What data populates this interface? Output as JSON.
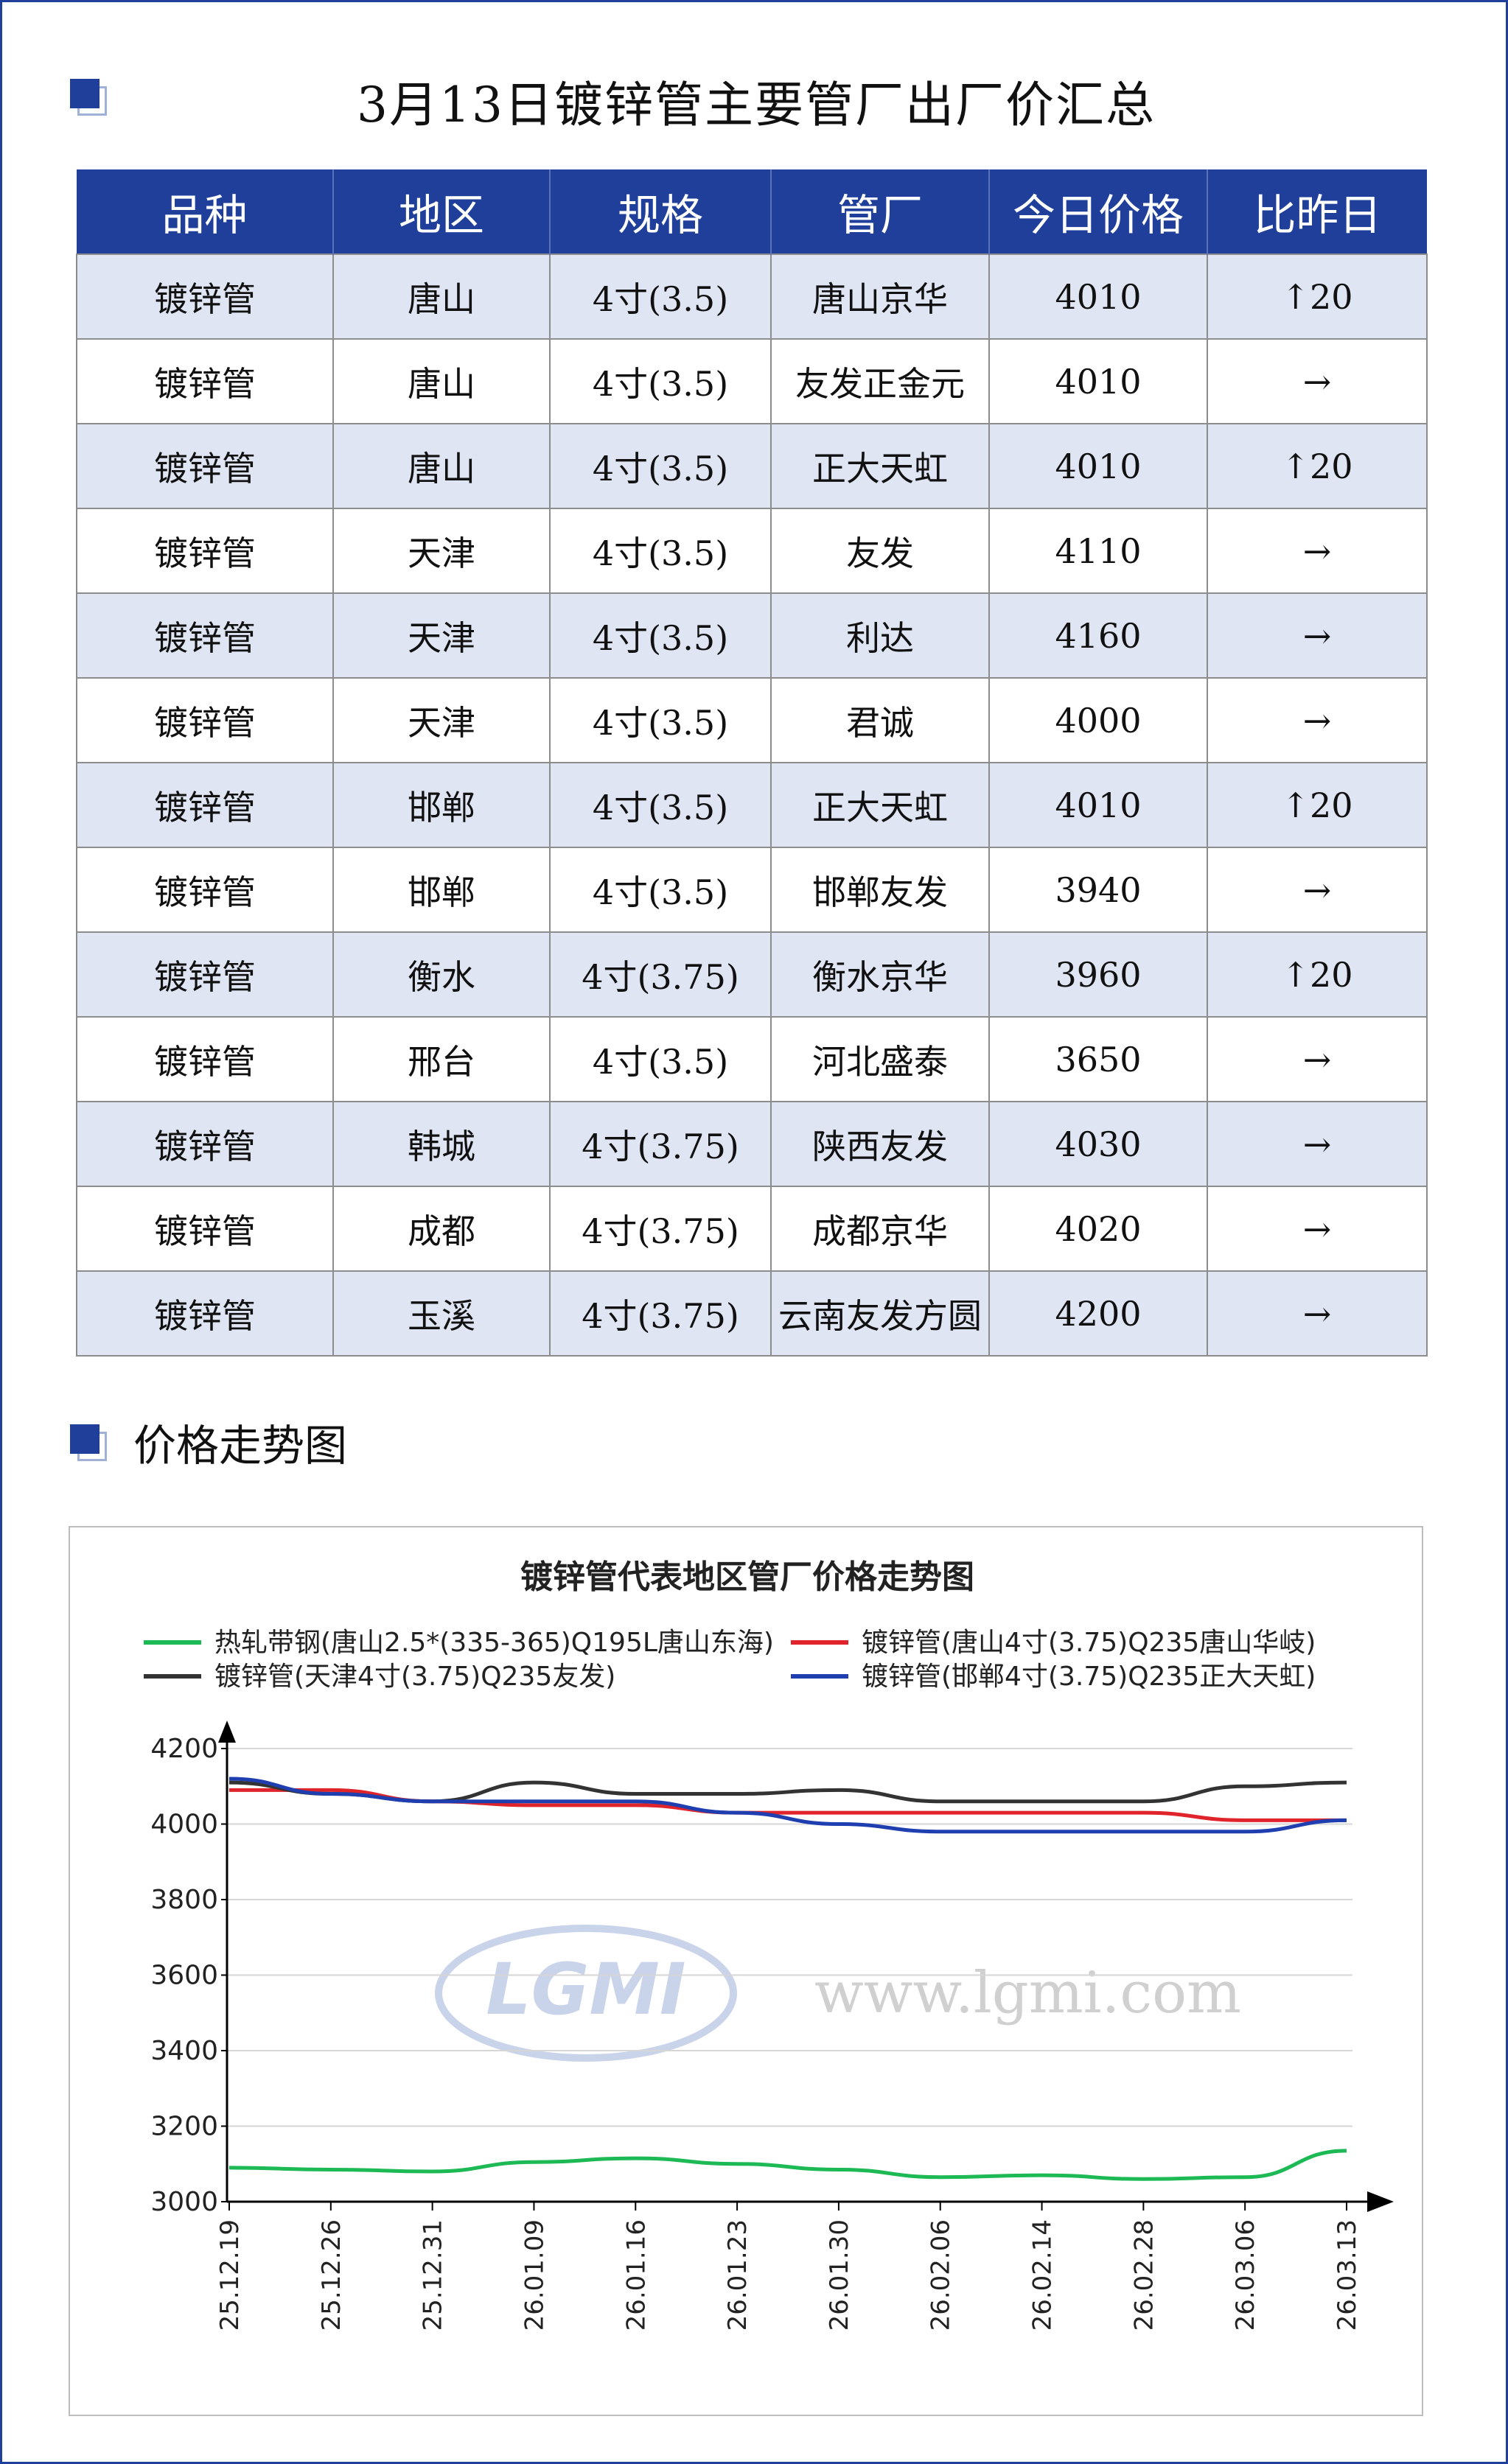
{
  "header": {
    "title": "3月13日镀锌管主要管厂出厂价汇总"
  },
  "table": {
    "columns": [
      "品种",
      "地区",
      "规格",
      "管厂",
      "今日价格",
      "比昨日"
    ],
    "rows": [
      [
        "镀锌管",
        "唐山",
        "4寸(3.5)",
        "唐山京华",
        "4010",
        "↑20"
      ],
      [
        "镀锌管",
        "唐山",
        "4寸(3.5)",
        "友发正金元",
        "4010",
        "→"
      ],
      [
        "镀锌管",
        "唐山",
        "4寸(3.5)",
        "正大天虹",
        "4010",
        "↑20"
      ],
      [
        "镀锌管",
        "天津",
        "4寸(3.5)",
        "友发",
        "4110",
        "→"
      ],
      [
        "镀锌管",
        "天津",
        "4寸(3.5)",
        "利达",
        "4160",
        "→"
      ],
      [
        "镀锌管",
        "天津",
        "4寸(3.5)",
        "君诚",
        "4000",
        "→"
      ],
      [
        "镀锌管",
        "邯郸",
        "4寸(3.5)",
        "正大天虹",
        "4010",
        "↑20"
      ],
      [
        "镀锌管",
        "邯郸",
        "4寸(3.5)",
        "邯郸友发",
        "3940",
        "→"
      ],
      [
        "镀锌管",
        "衡水",
        "4寸(3.75)",
        "衡水京华",
        "3960",
        "↑20"
      ],
      [
        "镀锌管",
        "邢台",
        "4寸(3.5)",
        "河北盛泰",
        "3650",
        "→"
      ],
      [
        "镀锌管",
        "韩城",
        "4寸(3.75)",
        "陕西友发",
        "4030",
        "→"
      ],
      [
        "镀锌管",
        "成都",
        "4寸(3.75)",
        "成都京华",
        "4020",
        "→"
      ],
      [
        "镀锌管",
        "玉溪",
        "4寸(3.75)",
        "云南友发方圆",
        "4200",
        "→"
      ]
    ]
  },
  "trend_section": {
    "title": "价格走势图"
  },
  "chart_data": {
    "type": "line",
    "title": "镀锌管代表地区管厂价格走势图",
    "watermark": "www.lgmi.com",
    "logo_text": "LGMI",
    "x": [
      "25.12.19",
      "25.12.26",
      "25.12.31",
      "26.01.09",
      "26.01.16",
      "26.01.23",
      "26.01.30",
      "26.02.06",
      "26.02.14",
      "26.02.28",
      "26.03.06",
      "26.03.13"
    ],
    "ylim": [
      3000,
      4200
    ],
    "yticks": [
      3000,
      3200,
      3400,
      3600,
      3800,
      4000,
      4200
    ],
    "grid": true,
    "legend_position": "top",
    "series": [
      {
        "name": "热轧带钢(唐山2.5*(335-365)Q195L唐山东海)",
        "color": "#1db954",
        "values": [
          3090,
          3085,
          3080,
          3105,
          3115,
          3100,
          3085,
          3065,
          3070,
          3060,
          3065,
          3135
        ]
      },
      {
        "name": "镀锌管(唐山4寸(3.75)Q235唐山华岐)",
        "color": "#e0242b",
        "values": [
          4090,
          4090,
          4060,
          4050,
          4050,
          4030,
          4030,
          4030,
          4030,
          4030,
          4010,
          4010
        ]
      },
      {
        "name": "镀锌管(天津4寸(3.75)Q235友发)",
        "color": "#333333",
        "values": [
          4110,
          4080,
          4060,
          4110,
          4080,
          4080,
          4090,
          4060,
          4060,
          4060,
          4100,
          4110
        ]
      },
      {
        "name": "镀锌管(邯郸4寸(3.75)Q235正大天虹)",
        "color": "#1f3fb0",
        "values": [
          4120,
          4080,
          4060,
          4060,
          4060,
          4030,
          4000,
          3980,
          3980,
          3980,
          3980,
          4010
        ]
      }
    ]
  }
}
